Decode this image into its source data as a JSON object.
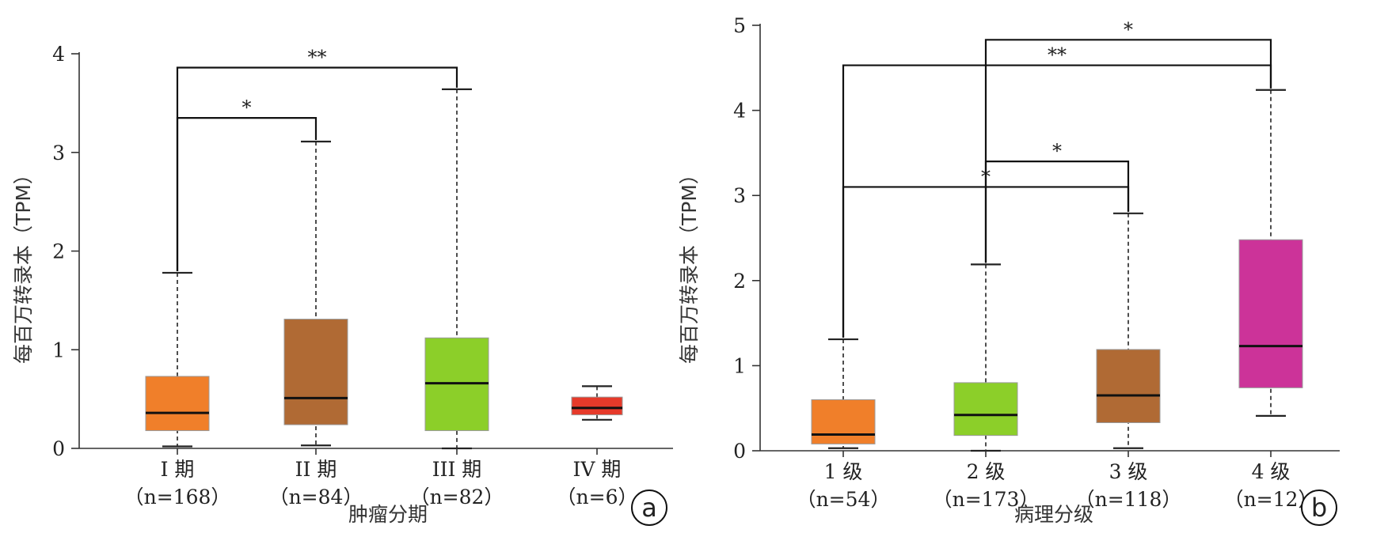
{
  "chart_data": [
    {
      "type": "box",
      "panel_label": "a",
      "ylabel": "每百万转录本（TPM）",
      "xlabel": "肿瘤分期",
      "ylim": [
        0,
        4
      ],
      "yticks": [
        "0",
        "1",
        "2",
        "3",
        "4"
      ],
      "categories": [
        {
          "label": "I 期",
          "n": "（n=168）",
          "color": "#f07f2a",
          "min": 0.02,
          "q1": 0.18,
          "median": 0.36,
          "q3": 0.73,
          "max": 1.78
        },
        {
          "label": "II 期",
          "n": "（n=84）",
          "color": "#b06a34",
          "min": 0.03,
          "q1": 0.24,
          "median": 0.51,
          "q3": 1.31,
          "max": 3.11
        },
        {
          "label": "III 期",
          "n": "（n=82）",
          "color": "#8ccf29",
          "min": 0.0,
          "q1": 0.18,
          "median": 0.66,
          "q3": 1.12,
          "max": 3.64
        },
        {
          "label": "IV 期",
          "n": "（n=6）",
          "color": "#e63a2a",
          "min": 0.29,
          "q1": 0.34,
          "median": 0.41,
          "q3": 0.52,
          "max": 0.63
        }
      ],
      "significance": [
        {
          "from": 0,
          "to": 1,
          "label": "*",
          "level": 3.35
        },
        {
          "from": 0,
          "to": 2,
          "label": "**",
          "level": 3.86
        }
      ]
    },
    {
      "type": "box",
      "panel_label": "b",
      "ylabel": "每百万转录本（TPM）",
      "xlabel": "病理分级",
      "ylim": [
        0,
        5
      ],
      "yticks": [
        "0",
        "1",
        "2",
        "3",
        "4",
        "5"
      ],
      "categories": [
        {
          "label": "1 级",
          "n": "（n=54）",
          "color": "#f07f2a",
          "min": 0.03,
          "q1": 0.08,
          "median": 0.19,
          "q3": 0.6,
          "max": 1.31
        },
        {
          "label": "2 级",
          "n": "（n=173）",
          "color": "#8ccf29",
          "min": 0.0,
          "q1": 0.18,
          "median": 0.42,
          "q3": 0.8,
          "max": 2.19
        },
        {
          "label": "3 级",
          "n": "（n=118）",
          "color": "#b06a34",
          "min": 0.03,
          "q1": 0.33,
          "median": 0.65,
          "q3": 1.19,
          "max": 2.79
        },
        {
          "label": "4 级",
          "n": "（n=12）",
          "color": "#cc3399",
          "min": 0.41,
          "q1": 0.74,
          "median": 1.23,
          "q3": 2.48,
          "max": 4.24
        }
      ],
      "significance": [
        {
          "from": 0,
          "to": 2,
          "label": "*",
          "level": 3.1
        },
        {
          "from": 1,
          "to": 2,
          "label": "*",
          "level": 3.4
        },
        {
          "from": 0,
          "to": 3,
          "label": "**",
          "level": 4.53
        },
        {
          "from": 1,
          "to": 3,
          "label": "*",
          "level": 4.83
        }
      ]
    }
  ]
}
